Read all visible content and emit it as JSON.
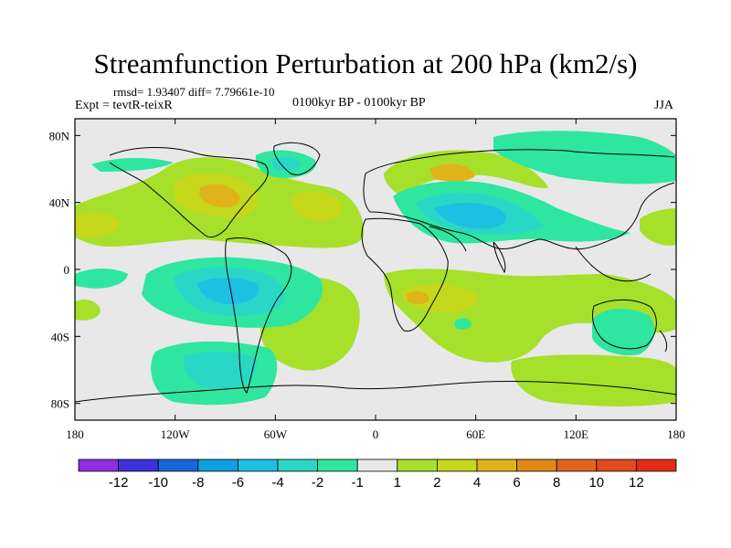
{
  "figure": {
    "title": "Streamfunction Perturbation at 200 hPa (km2/s)",
    "stats": "rmsd= 1.93407  diff= 7.79661e-10",
    "expt": "Expt = tevtR-teixR",
    "period": "0100kyr BP - 0100kyr BP",
    "season": "JJA"
  },
  "axes": {
    "x_ticks": [
      "180",
      "120W",
      "60W",
      "0",
      "60E",
      "120E",
      "180"
    ],
    "y_ticks": [
      "80N",
      "40N",
      "0",
      "40S",
      "80S"
    ],
    "x_range": [
      -180,
      180
    ],
    "y_range": [
      -90,
      90
    ]
  },
  "colorbar": {
    "labels": [
      "-12",
      "-10",
      "-8",
      "-6",
      "-4",
      "-2",
      "-1",
      "1",
      "2",
      "4",
      "6",
      "8",
      "10",
      "12"
    ],
    "colors": [
      "#8e2ee3",
      "#3f31d9",
      "#1767d9",
      "#0f9fe0",
      "#1ec0e2",
      "#29d7c7",
      "#2ee6a0",
      "#e8e8e8",
      "#a6e02b",
      "#c6d81c",
      "#e0b418",
      "#e08a16",
      "#e2641c",
      "#df4a1f",
      "#e42a14"
    ]
  }
}
